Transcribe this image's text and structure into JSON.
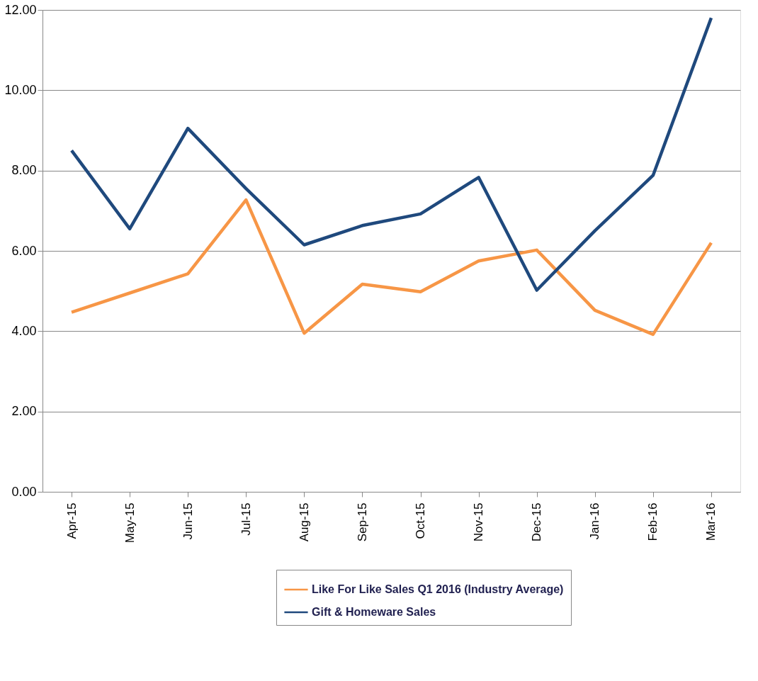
{
  "chart_data": {
    "type": "line",
    "categories": [
      "Apr-15",
      "May-15",
      "Jun-15",
      "Jul-15",
      "Aug-15",
      "Sep-15",
      "Oct-15",
      "Nov-15",
      "Dec-15",
      "Jan-16",
      "Feb-16",
      "Mar-16"
    ],
    "series": [
      {
        "name": "Like For Like Sales Q1 2016 (Industry Average)",
        "color": "#f79646",
        "values": [
          4.47,
          4.95,
          5.43,
          7.27,
          3.95,
          5.17,
          4.98,
          5.75,
          6.02,
          4.52,
          3.92,
          6.2
        ]
      },
      {
        "name": "Gift & Homeware Sales",
        "color": "#1f497d",
        "values": [
          8.5,
          6.55,
          9.05,
          7.55,
          6.15,
          6.63,
          6.92,
          7.83,
          5.02,
          6.5,
          7.88,
          11.8
        ]
      }
    ],
    "ylim": [
      0,
      12
    ],
    "yticks": [
      {
        "value": 0,
        "label": "0.00"
      },
      {
        "value": 2,
        "label": "2.00"
      },
      {
        "value": 4,
        "label": "4.00"
      },
      {
        "value": 6,
        "label": "6.00"
      },
      {
        "value": 8,
        "label": "8.00"
      },
      {
        "value": 10,
        "label": "10.00"
      },
      {
        "value": 12,
        "label": "12.00"
      }
    ],
    "grid": "y",
    "legend": "bottom",
    "marker": "none",
    "line_style": "solid"
  }
}
